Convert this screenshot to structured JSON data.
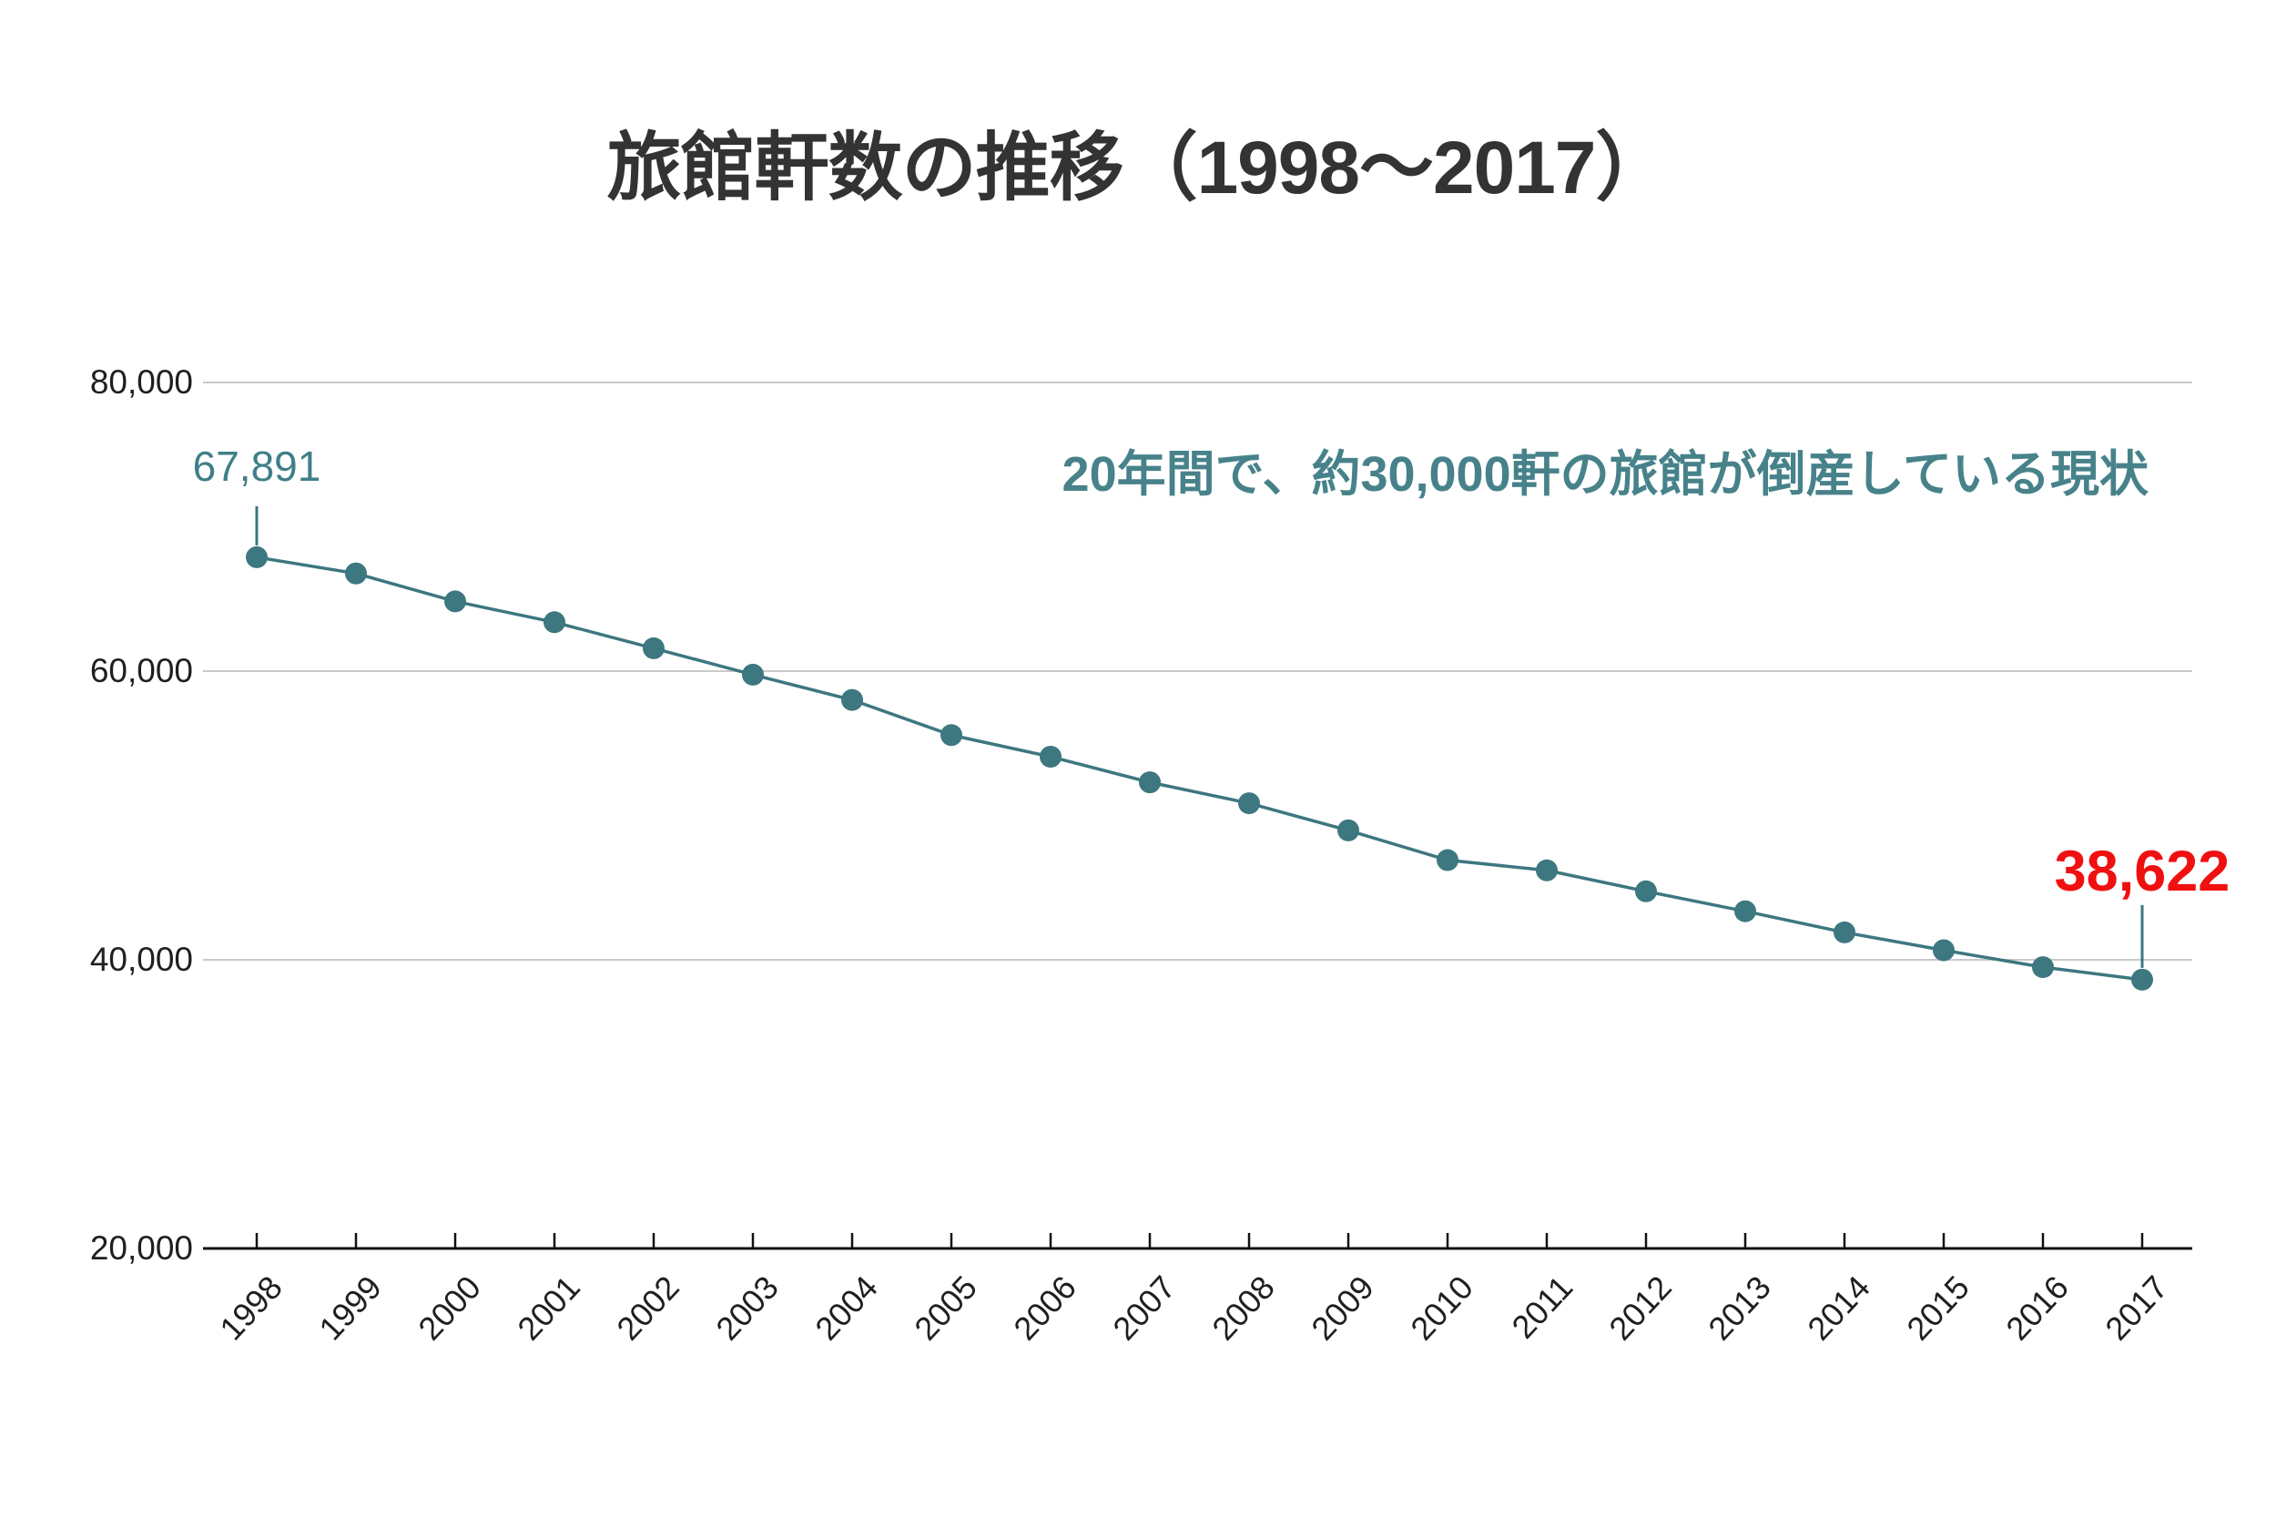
{
  "page": {
    "background": "#ffffff"
  },
  "title": {
    "text": "旅館軒数の推移（1998〜2017）",
    "color": "#333333"
  },
  "annotation": {
    "text": "20年間で、約30,000軒の旅館が倒産している現状",
    "color": "#47828a"
  },
  "chart_data": {
    "type": "line",
    "title": "旅館軒数の推移（1998〜2017）",
    "series_name": "旅館軒数",
    "x": [
      1998,
      1999,
      2000,
      2001,
      2002,
      2003,
      2004,
      2005,
      2006,
      2007,
      2008,
      2009,
      2010,
      2011,
      2012,
      2013,
      2014,
      2015,
      2016,
      2017
    ],
    "values": [
      67891,
      66766,
      64831,
      63388,
      61583,
      59754,
      58003,
      55567,
      54070,
      52295,
      50846,
      48966,
      46906,
      46196,
      44744,
      43363,
      41899,
      40661,
      39489,
      38622
    ],
    "ylim": [
      20000,
      80000
    ],
    "yticks": [
      20000,
      40000,
      60000,
      80000
    ],
    "ytick_labels": [
      "20,000",
      "40,000",
      "60,000",
      "80,000"
    ],
    "grid": "horizontal",
    "legend": "none",
    "line_color": "#3d7780",
    "grid_color": "#c9c9c9",
    "axis_color": "#111111",
    "point_labels": {
      "first": {
        "text": "67,891",
        "color": "#3f7f87"
      },
      "last": {
        "text": "38,622",
        "color": "#f01010"
      }
    }
  }
}
